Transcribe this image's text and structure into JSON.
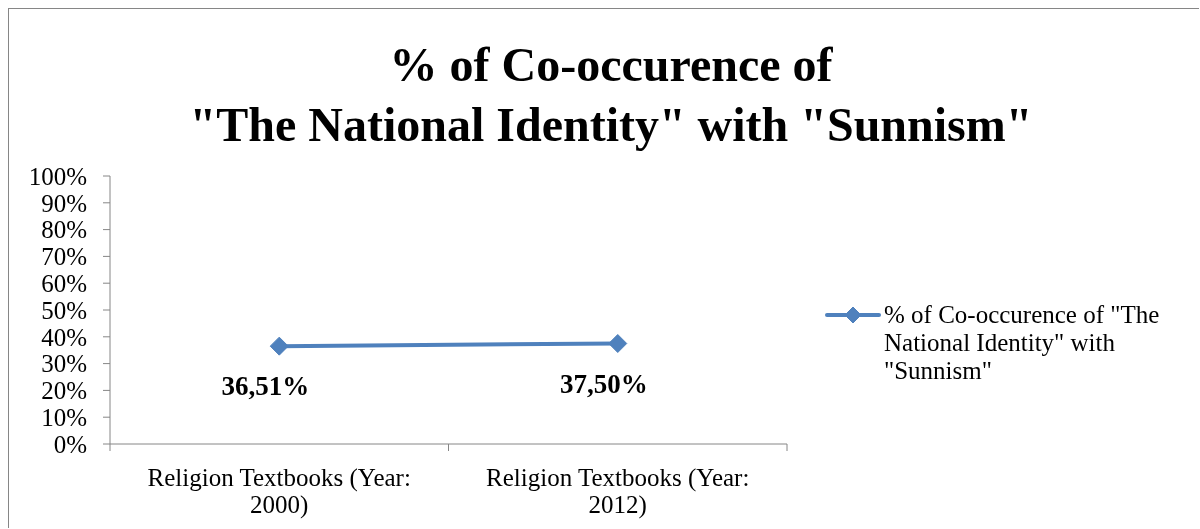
{
  "chart_data": {
    "type": "line",
    "title": "% of Co-occurence of\n\"The National Identity\" with \"Sunnism\"",
    "categories": [
      "Religion Textbooks (Year: 2000)",
      "Religion Textbooks (Year: 2012)"
    ],
    "series": [
      {
        "name": "% of Co-occurence of \"The National Identity\" with \"Sunnism\"",
        "color": "#4f81bd",
        "values": [
          36.51,
          37.5
        ],
        "value_labels": [
          "36,51%",
          "37,50%"
        ]
      }
    ],
    "ylim": [
      0,
      100
    ],
    "yticks": [
      {
        "value": 0,
        "label": "0%"
      },
      {
        "value": 10,
        "label": "10%"
      },
      {
        "value": 20,
        "label": "20%"
      },
      {
        "value": 30,
        "label": "30%"
      },
      {
        "value": 40,
        "label": "40%"
      },
      {
        "value": 50,
        "label": "50%"
      },
      {
        "value": 60,
        "label": "60%"
      },
      {
        "value": 70,
        "label": "70%"
      },
      {
        "value": 80,
        "label": "80%"
      },
      {
        "value": 90,
        "label": "90%"
      },
      {
        "value": 100,
        "label": "100%"
      }
    ],
    "grid": false,
    "legend": "right",
    "marker": "diamond",
    "line_style": "solid"
  }
}
